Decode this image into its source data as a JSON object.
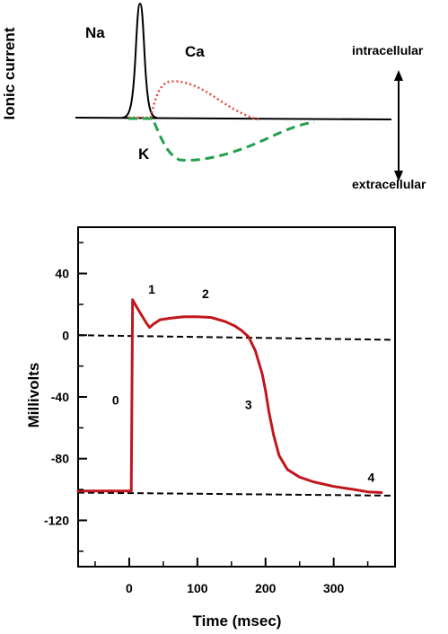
{
  "top_panel": {
    "ylabel": "Ionic current",
    "na_label": "Na",
    "ca_label": "Ca",
    "k_label": "K",
    "intracellular_label": "intracellular",
    "extracellular_label": "extracellular",
    "colors": {
      "na": "#000000",
      "ca": "#e8493a",
      "k": "#22a04b"
    }
  },
  "chart_data": {
    "type": "line",
    "xlabel": "Time (msec)",
    "ylabel": "Millivolts",
    "xlim": [
      -75,
      390
    ],
    "ylim": [
      -150,
      70
    ],
    "xticks": [
      0,
      100,
      200,
      300
    ],
    "xticks_minor": [
      -50,
      50,
      150,
      250,
      350
    ],
    "yticks": [
      40,
      0,
      -40,
      -80,
      -120
    ],
    "yticks_minor": [
      60,
      20,
      -20,
      -60,
      -100,
      -140
    ],
    "series": [
      {
        "color": "#c0171c",
        "points": [
          [
            -75,
            -101
          ],
          [
            0,
            -101
          ],
          [
            3,
            -101
          ],
          [
            5,
            23
          ],
          [
            10,
            19
          ],
          [
            18,
            13
          ],
          [
            25,
            8
          ],
          [
            30,
            5
          ],
          [
            35,
            7
          ],
          [
            45,
            10
          ],
          [
            60,
            11
          ],
          [
            80,
            12
          ],
          [
            100,
            12
          ],
          [
            120,
            11.5
          ],
          [
            140,
            9
          ],
          [
            155,
            6
          ],
          [
            165,
            3
          ],
          [
            175,
            -1
          ],
          [
            185,
            -10
          ],
          [
            195,
            -25
          ],
          [
            200,
            -36
          ],
          [
            205,
            -50
          ],
          [
            212,
            -65
          ],
          [
            220,
            -78
          ],
          [
            232,
            -87
          ],
          [
            250,
            -92
          ],
          [
            270,
            -95
          ],
          [
            300,
            -98
          ],
          [
            330,
            -100
          ],
          [
            350,
            -101.5
          ],
          [
            370,
            -102
          ]
        ]
      }
    ],
    "reference_lines": [
      {
        "style": "dashed",
        "from": [
          -75,
          0
        ],
        "to": [
          390,
          -3
        ]
      },
      {
        "style": "dashed",
        "from": [
          -75,
          -102
        ],
        "to": [
          390,
          -104
        ]
      }
    ],
    "phase_labels": [
      {
        "text": "0",
        "x": -20,
        "y": -45
      },
      {
        "text": "1",
        "x": 33,
        "y": 27
      },
      {
        "text": "2",
        "x": 112,
        "y": 24
      },
      {
        "text": "3",
        "x": 175,
        "y": -48
      },
      {
        "text": "4",
        "x": 355,
        "y": -95
      }
    ]
  }
}
